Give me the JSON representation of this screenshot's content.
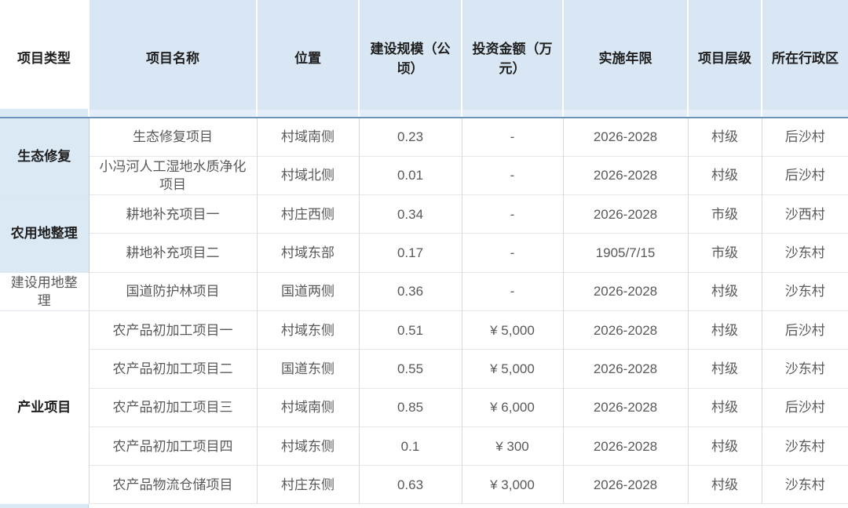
{
  "chart_data": {
    "type": "table",
    "title": "",
    "columns": [
      "项目类型",
      "项目名称",
      "位置",
      "建设规模（公顷）",
      "投资金额（万元）",
      "实施年限",
      "项目层级",
      "所在行政区"
    ],
    "rows": [
      [
        "生态修复",
        "生态修复项目",
        "村域南侧",
        "0.23",
        "-",
        "2026-2028",
        "村级",
        "后沙村"
      ],
      [
        "生态修复",
        "小冯河人工湿地水质净化项目",
        "村域北侧",
        "0.01",
        "-",
        "2026-2028",
        "村级",
        "后沙村"
      ],
      [
        "农用地整理",
        "耕地补充项目一",
        "村庄西侧",
        "0.34",
        "-",
        "2026-2028",
        "市级",
        "沙西村"
      ],
      [
        "农用地整理",
        "耕地补充项目二",
        "村域东部",
        "0.17",
        "-",
        "1905/7/15",
        "市级",
        "沙东村"
      ],
      [
        "建设用地整理",
        "国道防护林项目",
        "国道两侧",
        "0.36",
        "-",
        "2026-2028",
        "村级",
        "沙东村"
      ],
      [
        "产业项目",
        "农产品初加工项目一",
        "村域东侧",
        "0.51",
        "¥ 5,000",
        "2026-2028",
        "村级",
        "后沙村"
      ],
      [
        "产业项目",
        "农产品初加工项目二",
        "国道东侧",
        "0.55",
        "¥ 5,000",
        "2026-2028",
        "村级",
        "沙东村"
      ],
      [
        "产业项目",
        "农产品初加工项目三",
        "村域南侧",
        "0.85",
        "¥ 6,000",
        "2026-2028",
        "村级",
        "后沙村"
      ],
      [
        "产业项目",
        "农产品初加工项目四",
        "村域东侧",
        "0.1",
        "¥ 300",
        "2026-2028",
        "村级",
        "沙东村"
      ],
      [
        "产业项目",
        "农产品物流仓储项目",
        "村庄东侧",
        "0.63",
        "¥ 3,000",
        "2026-2028",
        "村级",
        "沙东村"
      ]
    ]
  },
  "table": {
    "groups": [
      {
        "label": "生态修复",
        "span": 2,
        "highlight": true,
        "bold": true
      },
      {
        "label": "农用地整理",
        "span": 2,
        "highlight": true,
        "bold": true
      },
      {
        "label": "建设用地整理",
        "span": 1,
        "highlight": false,
        "bold": false
      },
      {
        "label": "产业项目",
        "span": 5,
        "highlight": false,
        "bold": true
      }
    ]
  },
  "colors": {
    "header_bg": "#d9e7f4",
    "header_text": "#1f1f1f",
    "header_rule": "#6c94ba",
    "group_highlight_bg": "#dbe9f5",
    "group_col_border": "#b9d3e9",
    "body_text": "#595959",
    "grid_line": "#d9d9d9",
    "row_line": "#e7e7e7"
  }
}
